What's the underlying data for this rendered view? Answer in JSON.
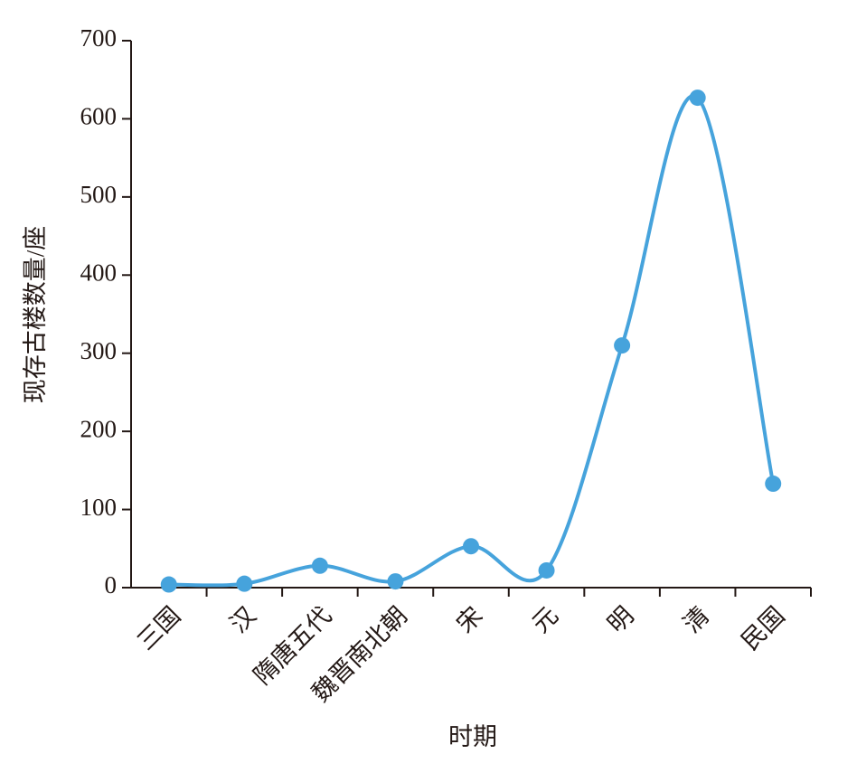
{
  "chart_data": {
    "type": "line",
    "x_label": "时期",
    "y_label": "现存古楼数量/座",
    "categories": [
      "三国",
      "汉",
      "隋唐五代",
      "魏晋南北朝",
      "宋",
      "元",
      "明",
      "清",
      "民国"
    ],
    "series": [
      {
        "name": "现存古楼数量",
        "color": "#46a3dc",
        "values": [
          4,
          5,
          28,
          8,
          53,
          22,
          310,
          627,
          133
        ]
      }
    ],
    "ylim": [
      0,
      700
    ],
    "yticks": [
      0,
      100,
      200,
      300,
      400,
      500,
      600,
      700
    ],
    "smooth": true
  }
}
